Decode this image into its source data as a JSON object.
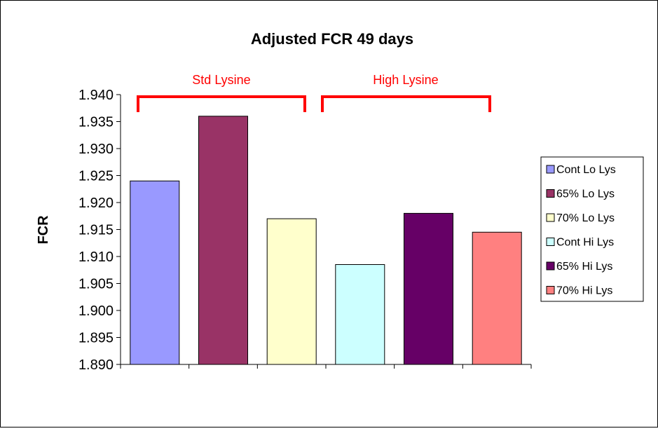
{
  "chart_data": {
    "type": "bar",
    "title": "Adjusted FCR 49 days",
    "xlabel": "",
    "ylabel": "FCR",
    "ylim": [
      1.89,
      1.94
    ],
    "yticks": [
      "1.940",
      "1.935",
      "1.930",
      "1.925",
      "1.920",
      "1.915",
      "1.910",
      "1.905",
      "1.900",
      "1.895",
      "1.890"
    ],
    "grid": false,
    "legend_position": "right",
    "series": [
      {
        "name": "Cont Lo Lys",
        "value": 1.924,
        "color": "#9999ff"
      },
      {
        "name": "65% Lo Lys",
        "value": 1.936,
        "color": "#993366"
      },
      {
        "name": "70% Lo Lys",
        "value": 1.917,
        "color": "#ffffcc"
      },
      {
        "name": "Cont Hi Lys",
        "value": 1.9085,
        "color": "#ccffff"
      },
      {
        "name": "65% Hi Lys",
        "value": 1.918,
        "color": "#660066"
      },
      {
        "name": "70% Hi Lys",
        "value": 1.9145,
        "color": "#ff8080"
      }
    ],
    "annotations": [
      {
        "text": "Std Lysine",
        "color": "#ff0000"
      },
      {
        "text": "High Lysine",
        "color": "#ff0000"
      }
    ]
  }
}
